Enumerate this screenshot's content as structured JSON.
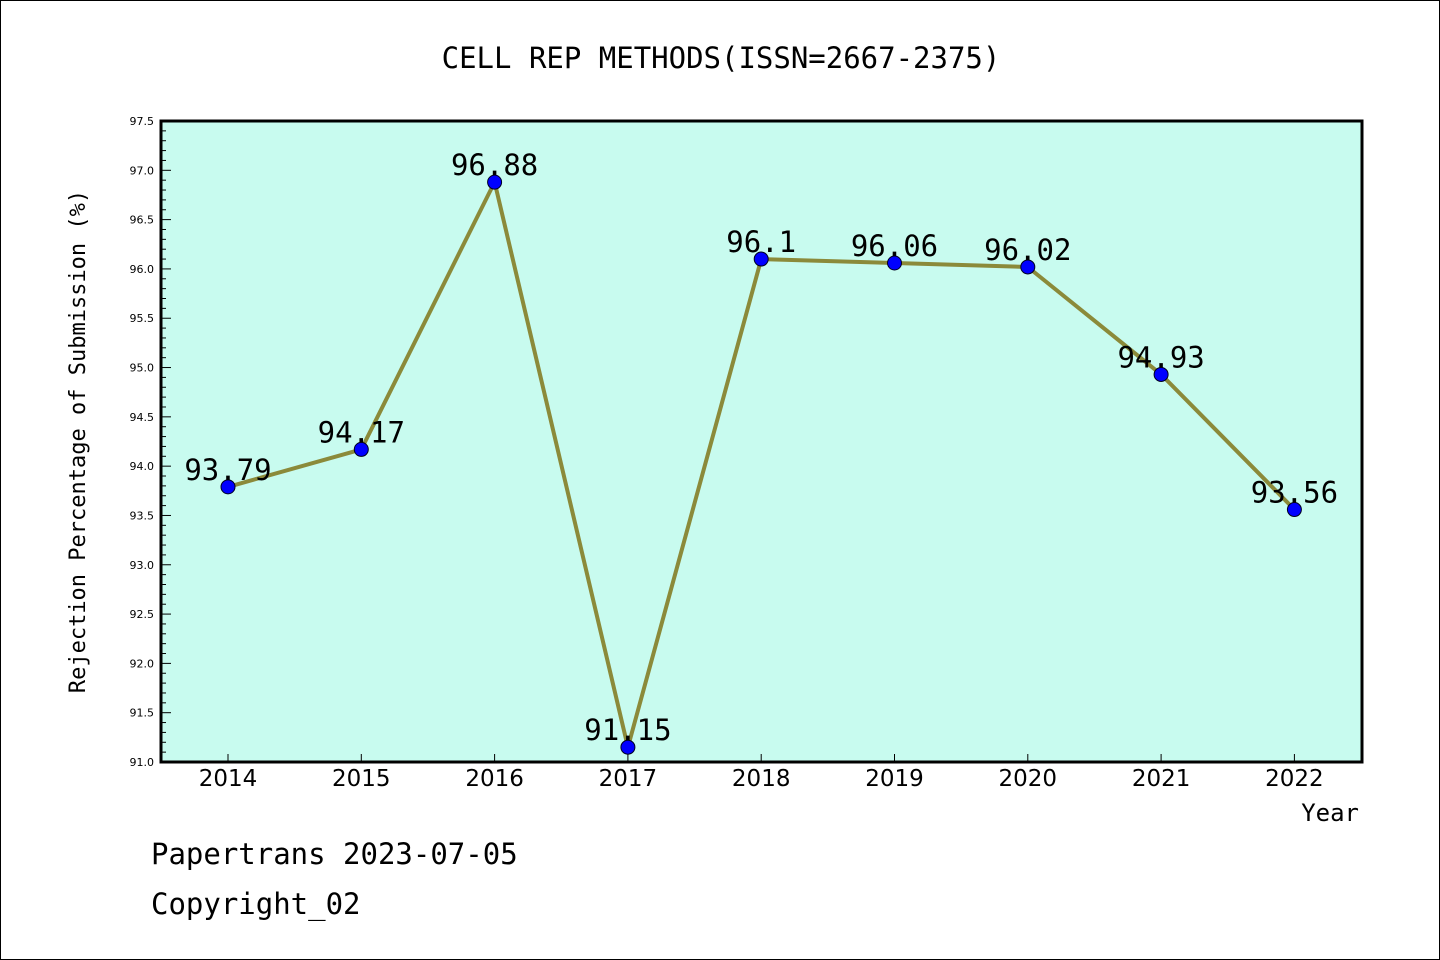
{
  "chart_data": {
    "type": "line",
    "title": "CELL REP METHODS(ISSN=2667-2375)",
    "xlabel": "Year",
    "ylabel": "Rejection Percentage of Submission (%)",
    "categories": [
      "2014",
      "2015",
      "2016",
      "2017",
      "2018",
      "2019",
      "2020",
      "2021",
      "2022"
    ],
    "series": [
      {
        "values": [
          93.79,
          94.17,
          96.88,
          91.15,
          96.1,
          96.06,
          96.02,
          94.93,
          93.56
        ],
        "labels": [
          "93.79",
          "94.17",
          "96.88",
          "91.15",
          "96.1",
          "96.06",
          "96.02",
          "94.93",
          "93.56"
        ]
      }
    ],
    "ylim": [
      91.0,
      97.5
    ],
    "yticks": [
      "91.0",
      "91.5",
      "92.0",
      "92.5",
      "93.0",
      "93.5",
      "94.0",
      "94.5",
      "95.0",
      "95.5",
      "96.0",
      "96.5",
      "97.0",
      "97.5"
    ],
    "grid": false,
    "legend": "none"
  },
  "colors": {
    "plot_background": "#c8fbef",
    "line": "#8b8a3a",
    "marker": "#0000ff",
    "text": "#000000"
  },
  "footer": {
    "line1": "Papertrans 2023-07-05",
    "line2": "Copyright_02"
  }
}
